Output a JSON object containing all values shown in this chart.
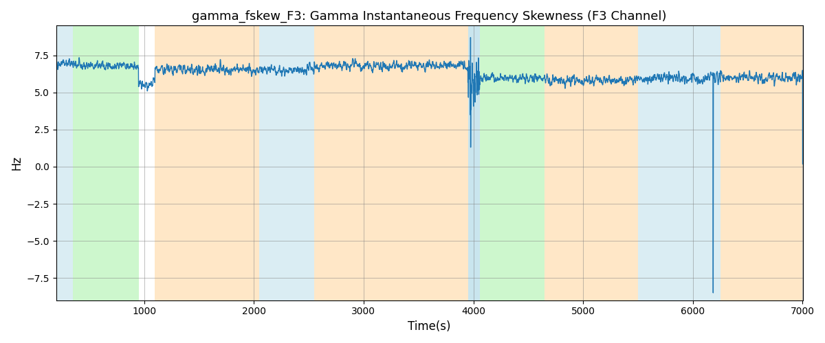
{
  "title": "gamma_fskew_F3: Gamma Instantaneous Frequency Skewness (F3 Channel)",
  "xlabel": "Time(s)",
  "ylabel": "Hz",
  "xlim": [
    200,
    7000
  ],
  "ylim": [
    -9,
    9.5
  ],
  "yticks": [
    -7.5,
    -5.0,
    -2.5,
    0.0,
    2.5,
    5.0,
    7.5
  ],
  "xticks": [
    1000,
    2000,
    3000,
    4000,
    5000,
    6000,
    7000
  ],
  "line_color": "#1f77b4",
  "line_width": 1.0,
  "bg_regions": [
    {
      "xmin": 200,
      "xmax": 350,
      "color": "#add8e6",
      "alpha": 0.45
    },
    {
      "xmin": 350,
      "xmax": 950,
      "color": "#90ee90",
      "alpha": 0.45
    },
    {
      "xmin": 1100,
      "xmax": 2050,
      "color": "#ffd59a",
      "alpha": 0.55
    },
    {
      "xmin": 2050,
      "xmax": 2550,
      "color": "#add8e6",
      "alpha": 0.45
    },
    {
      "xmin": 2550,
      "xmax": 3950,
      "color": "#ffd59a",
      "alpha": 0.55
    },
    {
      "xmin": 3950,
      "xmax": 4060,
      "color": "#add8e6",
      "alpha": 0.65
    },
    {
      "xmin": 4060,
      "xmax": 4650,
      "color": "#90ee90",
      "alpha": 0.45
    },
    {
      "xmin": 4650,
      "xmax": 5500,
      "color": "#ffd59a",
      "alpha": 0.55
    },
    {
      "xmin": 5500,
      "xmax": 6250,
      "color": "#add8e6",
      "alpha": 0.45
    },
    {
      "xmin": 6250,
      "xmax": 7000,
      "color": "#ffd59a",
      "alpha": 0.55
    }
  ],
  "seed": 42,
  "t_start": 200,
  "t_end": 7000,
  "segments": [
    {
      "t0": 200,
      "t1": 350,
      "mean": 7.0,
      "std": 0.3,
      "smooth": 3
    },
    {
      "t0": 350,
      "t1": 950,
      "mean": 6.8,
      "std": 0.35,
      "smooth": 3
    },
    {
      "t0": 950,
      "t1": 1100,
      "mean": 5.5,
      "std": 0.5,
      "smooth": 3
    },
    {
      "t0": 1100,
      "t1": 2050,
      "mean": 6.5,
      "std": 0.45,
      "smooth": 3
    },
    {
      "t0": 2050,
      "t1": 2550,
      "mean": 6.5,
      "std": 0.55,
      "smooth": 3
    },
    {
      "t0": 2550,
      "t1": 3950,
      "mean": 6.8,
      "std": 0.45,
      "smooth": 3
    },
    {
      "t0": 3950,
      "t1": 4060,
      "mean": 6.0,
      "std": 1.5,
      "smooth": 1
    },
    {
      "t0": 4060,
      "t1": 4650,
      "mean": 6.0,
      "std": 0.35,
      "smooth": 3
    },
    {
      "t0": 4650,
      "t1": 5500,
      "mean": 5.8,
      "std": 0.45,
      "smooth": 3
    },
    {
      "t0": 5500,
      "t1": 6250,
      "mean": 6.0,
      "std": 0.6,
      "smooth": 3
    },
    {
      "t0": 6250,
      "t1": 7000,
      "mean": 6.0,
      "std": 0.5,
      "smooth": 3
    }
  ],
  "spikes": [
    {
      "t": 3975,
      "v": 8.7
    },
    {
      "t": 6185,
      "v": -8.5
    }
  ]
}
